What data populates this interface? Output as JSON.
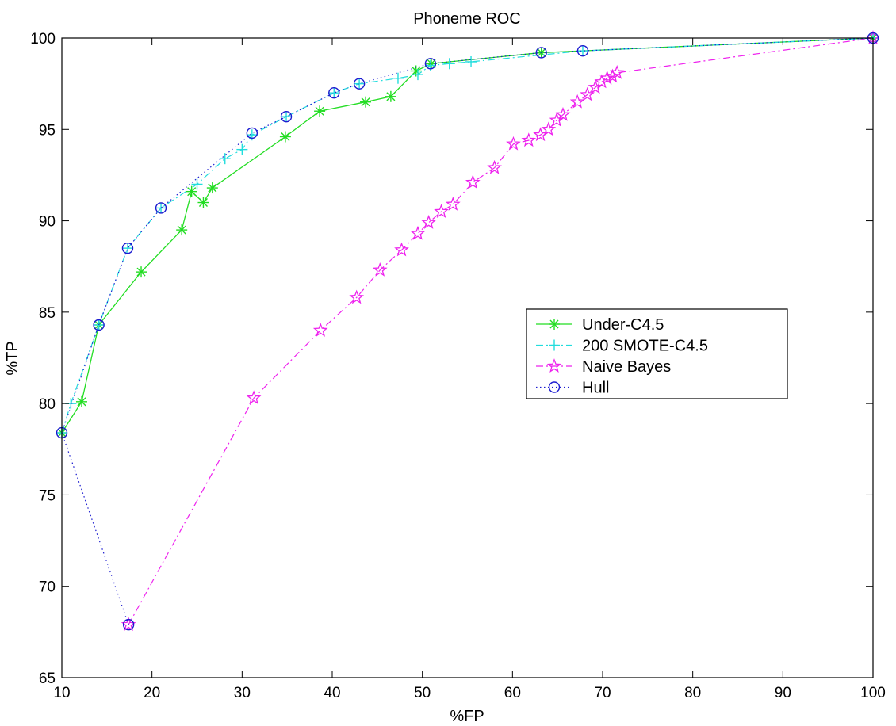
{
  "chart_data": {
    "type": "line",
    "title": "Phoneme ROC",
    "xlabel": "%FP",
    "ylabel": "%TP",
    "xlim": [
      10,
      100
    ],
    "ylim": [
      65,
      100
    ],
    "xticks": [
      10,
      20,
      30,
      40,
      50,
      60,
      70,
      80,
      90,
      100
    ],
    "yticks": [
      65,
      70,
      75,
      80,
      85,
      90,
      95,
      100
    ],
    "grid": false,
    "legend_position": "center-right",
    "series": [
      {
        "name": "Under-C4.5",
        "color": "#22dd22",
        "line": "solid",
        "marker": "asterisk",
        "x": [
          10.0,
          12.2,
          14.1,
          18.8,
          23.3,
          24.4,
          25.7,
          26.7,
          34.8,
          38.6,
          43.7,
          46.5,
          49.3,
          51.0,
          63.2,
          100.0
        ],
        "y": [
          78.4,
          80.1,
          84.3,
          87.2,
          89.5,
          91.6,
          91.0,
          91.8,
          94.6,
          96.0,
          96.5,
          96.8,
          98.2,
          98.6,
          99.2,
          100.0
        ]
      },
      {
        "name": "200 SMOTE-C4.5",
        "color": "#22dddd",
        "line": "dashdot",
        "marker": "plus",
        "x": [
          10.0,
          11.0,
          14.1,
          17.3,
          21.0,
          25.0,
          28.1,
          30.0,
          31.1,
          34.9,
          40.2,
          43.0,
          47.3,
          49.5,
          50.9,
          53.0,
          55.4,
          67.8,
          100.0
        ],
        "y": [
          78.4,
          80.0,
          84.3,
          88.5,
          90.7,
          92.0,
          93.4,
          93.9,
          94.7,
          95.7,
          97.0,
          97.5,
          97.8,
          98.0,
          98.5,
          98.6,
          98.7,
          99.3,
          100.0
        ]
      },
      {
        "name": "Naive Bayes",
        "color": "#ee22ee",
        "line": "dashdot",
        "marker": "pentagram",
        "x": [
          17.4,
          31.3,
          38.7,
          42.7,
          45.3,
          47.7,
          49.5,
          50.7,
          52.1,
          53.4,
          55.6,
          58.0,
          60.1,
          61.8,
          63.1,
          64.0,
          64.9,
          65.6,
          67.2,
          68.3,
          69.2,
          69.9,
          70.5,
          71.1,
          71.6,
          100.0
        ],
        "y": [
          67.9,
          80.3,
          84.0,
          85.8,
          87.3,
          88.4,
          89.3,
          89.9,
          90.5,
          90.9,
          92.1,
          92.9,
          94.2,
          94.4,
          94.7,
          95.0,
          95.5,
          95.8,
          96.5,
          96.9,
          97.3,
          97.6,
          97.8,
          97.9,
          98.1,
          100.0
        ]
      },
      {
        "name": "Hull",
        "color": "#1c1cd0",
        "line": "dotted",
        "marker": "circle",
        "x": [
          17.4,
          10.0,
          14.1,
          17.3,
          21.0,
          31.1,
          34.9,
          40.2,
          43.0,
          50.9,
          63.2,
          67.8,
          100.0
        ],
        "y": [
          67.9,
          78.4,
          84.3,
          88.5,
          90.7,
          94.8,
          95.7,
          97.0,
          97.5,
          98.6,
          99.2,
          99.3,
          100.0
        ]
      }
    ]
  }
}
